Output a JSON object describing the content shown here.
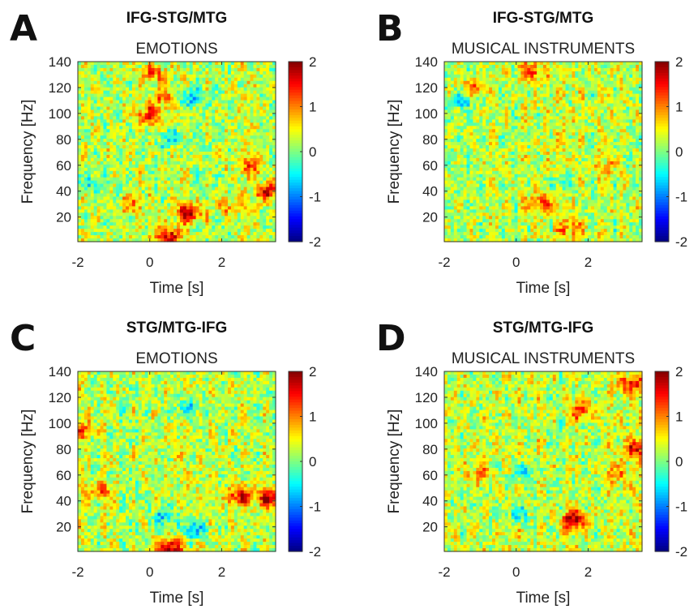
{
  "chart_data": [
    {
      "type": "heatmap",
      "panel_letter": "A",
      "title": "IFG-STG/MTG",
      "subtitle": "EMOTIONS",
      "xlabel": "Time [s]",
      "ylabel": "Frequency [Hz]",
      "xlim": [
        -2,
        3.5
      ],
      "ylim": [
        1,
        140
      ],
      "xticks": [
        -2,
        0,
        2
      ],
      "yticks": [
        20,
        40,
        60,
        80,
        100,
        120,
        140
      ],
      "colorbar": {
        "clim": [
          -2,
          2
        ],
        "ticks": [
          2,
          1,
          0,
          -1,
          -2
        ],
        "colormap": "jet"
      },
      "hotspots": [
        {
          "t": 0.0,
          "f": 98,
          "v": 1.3
        },
        {
          "t": 0.1,
          "f": 130,
          "v": 0.9
        },
        {
          "t": 0.4,
          "f": 112,
          "v": 0.9
        },
        {
          "t": 1.1,
          "f": 112,
          "v": -0.9
        },
        {
          "t": 1.1,
          "f": 23,
          "v": 1.6
        },
        {
          "t": 0.5,
          "f": 5,
          "v": 1.5
        },
        {
          "t": 3.3,
          "f": 40,
          "v": 1.5
        },
        {
          "t": 2.8,
          "f": 60,
          "v": 0.9
        },
        {
          "t": 2.2,
          "f": 28,
          "v": 0.7
        },
        {
          "t": -1.7,
          "f": 45,
          "v": -0.6
        },
        {
          "t": 0.6,
          "f": 80,
          "v": -0.7
        },
        {
          "t": -0.5,
          "f": 30,
          "v": 0.7
        }
      ]
    },
    {
      "type": "heatmap",
      "panel_letter": "B",
      "title": "IFG-STG/MTG",
      "subtitle": "MUSICAL INSTRUMENTS",
      "xlabel": "Time [s]",
      "ylabel": "Frequency [Hz]",
      "xlim": [
        -2,
        3.5
      ],
      "ylim": [
        1,
        140
      ],
      "xticks": [
        -2,
        0,
        2
      ],
      "yticks": [
        20,
        40,
        60,
        80,
        100,
        120,
        140
      ],
      "colorbar": {
        "clim": [
          -2,
          2
        ],
        "ticks": [
          2,
          1,
          0,
          -1,
          -2
        ],
        "colormap": "jet"
      },
      "hotspots": [
        {
          "t": 0.4,
          "f": 132,
          "v": 1.0
        },
        {
          "t": -1.2,
          "f": 120,
          "v": 0.8
        },
        {
          "t": 0.7,
          "f": 30,
          "v": 1.1
        },
        {
          "t": 1.5,
          "f": 12,
          "v": 0.8
        },
        {
          "t": 1.3,
          "f": 45,
          "v": -0.6
        },
        {
          "t": -1.5,
          "f": 110,
          "v": -0.7
        },
        {
          "t": 2.5,
          "f": 60,
          "v": 0.5
        }
      ]
    },
    {
      "type": "heatmap",
      "panel_letter": "C",
      "title": "STG/MTG-IFG",
      "subtitle": "EMOTIONS",
      "xlabel": "Time [s]",
      "ylabel": "Frequency [Hz]",
      "xlim": [
        -2,
        3.5
      ],
      "ylim": [
        1,
        140
      ],
      "xticks": [
        -2,
        0,
        2
      ],
      "yticks": [
        20,
        40,
        60,
        80,
        100,
        120,
        140
      ],
      "colorbar": {
        "clim": [
          -2,
          2
        ],
        "ticks": [
          2,
          1,
          0,
          -1,
          -2
        ],
        "colormap": "jet"
      },
      "hotspots": [
        {
          "t": 3.3,
          "f": 42,
          "v": 1.6
        },
        {
          "t": 2.5,
          "f": 44,
          "v": 1.3
        },
        {
          "t": 0.5,
          "f": 4,
          "v": 1.6
        },
        {
          "t": 1.2,
          "f": 18,
          "v": -1.1
        },
        {
          "t": 0.4,
          "f": 28,
          "v": -0.9
        },
        {
          "t": 1.0,
          "f": 112,
          "v": -0.8
        },
        {
          "t": -1.4,
          "f": 48,
          "v": 0.9
        },
        {
          "t": -1.8,
          "f": 95,
          "v": 0.8
        }
      ]
    },
    {
      "type": "heatmap",
      "panel_letter": "D",
      "title": "STG/MTG-IFG",
      "subtitle": "MUSICAL INSTRUMENTS",
      "xlabel": "Time [s]",
      "ylabel": "Frequency [Hz]",
      "xlim": [
        -2,
        3.5
      ],
      "ylim": [
        1,
        140
      ],
      "xticks": [
        -2,
        0,
        2
      ],
      "yticks": [
        20,
        40,
        60,
        80,
        100,
        120,
        140
      ],
      "colorbar": {
        "clim": [
          -2,
          2
        ],
        "ticks": [
          2,
          1,
          0,
          -1,
          -2
        ],
        "colormap": "jet"
      },
      "hotspots": [
        {
          "t": 1.6,
          "f": 25,
          "v": 1.6
        },
        {
          "t": 3.3,
          "f": 80,
          "v": 1.2
        },
        {
          "t": 1.8,
          "f": 110,
          "v": 1.0
        },
        {
          "t": 3.2,
          "f": 130,
          "v": 1.1
        },
        {
          "t": 0.2,
          "f": 62,
          "v": -0.8
        },
        {
          "t": 0.1,
          "f": 30,
          "v": -0.7
        },
        {
          "t": -1.0,
          "f": 60,
          "v": 0.8
        },
        {
          "t": 2.8,
          "f": 60,
          "v": 0.7
        }
      ]
    }
  ]
}
